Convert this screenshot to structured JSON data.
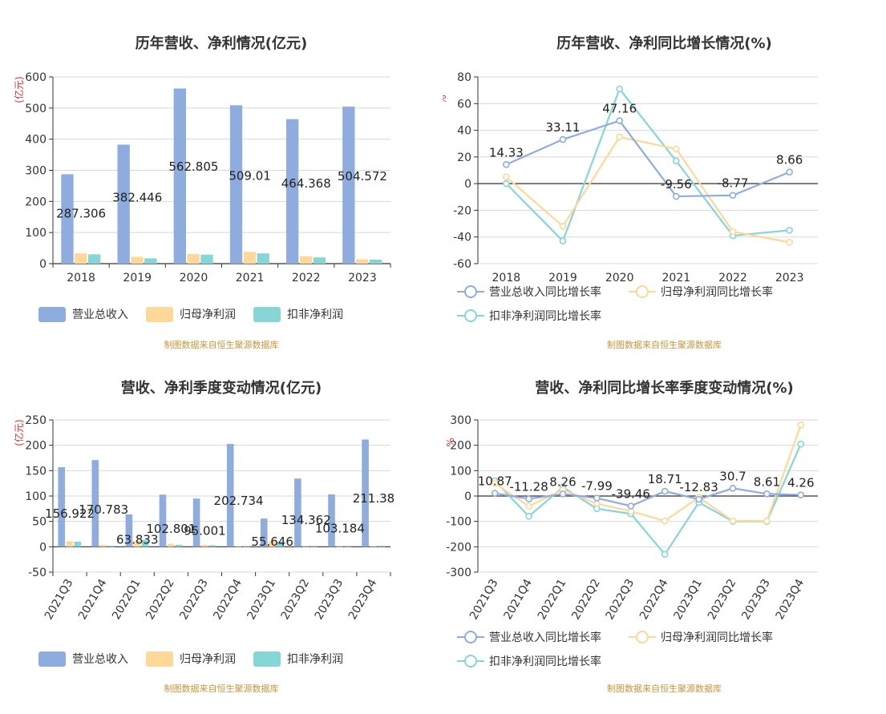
{
  "charts": [
    {
      "id": "annual-revenue",
      "title": "历年营收、净利情况(亿元)",
      "source": "制图数据来自恒生聚源数据库",
      "chart_data": {
        "type": "bar",
        "ylabel": "(亿元)",
        "categories": [
          "2018",
          "2019",
          "2020",
          "2021",
          "2022",
          "2023"
        ],
        "ylim": [
          0,
          600
        ],
        "yticks": [
          0,
          100,
          200,
          300,
          400,
          500,
          600
        ],
        "series": [
          {
            "name": "营业总收入",
            "color": "#8eadde",
            "values": [
              287.306,
              382.446,
              562.805,
              509.01,
              464.368,
              504.572
            ],
            "labels": [
              "287.306",
              "382.446",
              "562.805",
              "509.01",
              "464.368",
              "504.572"
            ]
          },
          {
            "name": "归母净利润",
            "color": "#fdd899",
            "values": [
              33,
              22,
              31,
              38,
              24,
              14
            ]
          },
          {
            "name": "扣非净利润",
            "color": "#86d6d8",
            "values": [
              30,
              17,
              29,
              33,
              20,
              13
            ]
          }
        ]
      }
    },
    {
      "id": "annual-growth",
      "title": "历年营收、净利同比增长情况(%)",
      "source": "制图数据来自恒生聚源数据库",
      "chart_data": {
        "type": "line",
        "ylabel": "%",
        "categories": [
          "2018",
          "2019",
          "2020",
          "2021",
          "2022",
          "2023"
        ],
        "ylim": [
          -60,
          80
        ],
        "yticks": [
          -60,
          -40,
          -20,
          0,
          20,
          40,
          60,
          80
        ],
        "series": [
          {
            "name": "营业总收入同比增长率",
            "color": "#8eadde",
            "values": [
              14.33,
              33.11,
              47.16,
              -9.56,
              -8.77,
              8.66
            ],
            "labels": [
              "14.33",
              "33.11",
              "47.16",
              "-9.56",
              "-8.77",
              "8.66"
            ]
          },
          {
            "name": "归母净利润同比增长率",
            "color": "#fdd899",
            "values": [
              5,
              -32,
              35,
              26,
              -36,
              -44
            ]
          },
          {
            "name": "扣非净利润同比增长率",
            "color": "#86d6d8",
            "values": [
              0,
              -43,
              71,
              17,
              -39,
              -35
            ]
          }
        ]
      }
    },
    {
      "id": "quarterly-revenue",
      "title": "营收、净利季度变动情况(亿元)",
      "source": "制图数据来自恒生聚源数据库",
      "chart_data": {
        "type": "bar",
        "ylabel": "(亿元)",
        "categories": [
          "2021Q3",
          "2021Q4",
          "2022Q1",
          "2022Q2",
          "2022Q3",
          "2022Q4",
          "2023Q1",
          "2023Q2",
          "2023Q3",
          "2023Q4"
        ],
        "ylim": [
          -50,
          250
        ],
        "yticks": [
          -50,
          0,
          50,
          100,
          150,
          200,
          250
        ],
        "series": [
          {
            "name": "营业总收入",
            "color": "#8eadde",
            "values": [
              156.922,
              170.783,
              63.833,
              102.801,
              95.001,
              202.734,
              55.646,
              134.362,
              103.184,
              211.38
            ],
            "labels": [
              "156.922",
              "170.783",
              "63.833",
              "102.801",
              "95.001",
              "202.734",
              "55.646",
              "134.362",
              "103.184",
              "211.38"
            ]
          },
          {
            "name": "归母净利润",
            "color": "#fdd899",
            "values": [
              11,
              4,
              12,
              6,
              4,
              1,
              11,
              0,
              0,
              1
            ]
          },
          {
            "name": "扣非净利润",
            "color": "#86d6d8",
            "values": [
              10,
              2,
              14,
              4,
              3,
              0,
              10,
              0,
              0,
              2
            ]
          }
        ]
      }
    },
    {
      "id": "quarterly-growth",
      "title": "营收、净利同比增长率季度变动情况(%)",
      "source": "制图数据来自恒生聚源数据库",
      "chart_data": {
        "type": "line",
        "ylabel": "%",
        "categories": [
          "2021Q3",
          "2021Q4",
          "2022Q1",
          "2022Q2",
          "2022Q3",
          "2022Q4",
          "2023Q1",
          "2023Q2",
          "2023Q3",
          "2023Q4"
        ],
        "ylim": [
          -300,
          300
        ],
        "yticks": [
          -300,
          -200,
          -100,
          0,
          100,
          200,
          300
        ],
        "series": [
          {
            "name": "营业总收入同比增长率",
            "color": "#8eadde",
            "values": [
              10.87,
              -11.28,
              8.26,
              -7.99,
              -39.46,
              18.71,
              -12.83,
              30.7,
              8.61,
              4.26
            ],
            "labels": [
              "10.87",
              "-11.28",
              "8.26",
              "-7.99",
              "-39.46",
              "18.71",
              "-12.83",
              "30.7",
              "8.61",
              "4.26"
            ]
          },
          {
            "name": "归母净利润同比增长率",
            "color": "#fdd899",
            "values": [
              50,
              -40,
              25,
              -30,
              -60,
              -98,
              -5,
              -98,
              -98,
              280
            ]
          },
          {
            "name": "扣非净利润同比增长率",
            "color": "#86d6d8",
            "values": [
              60,
              -80,
              35,
              -50,
              -70,
              -230,
              -25,
              -100,
              -100,
              205
            ]
          }
        ]
      }
    }
  ]
}
